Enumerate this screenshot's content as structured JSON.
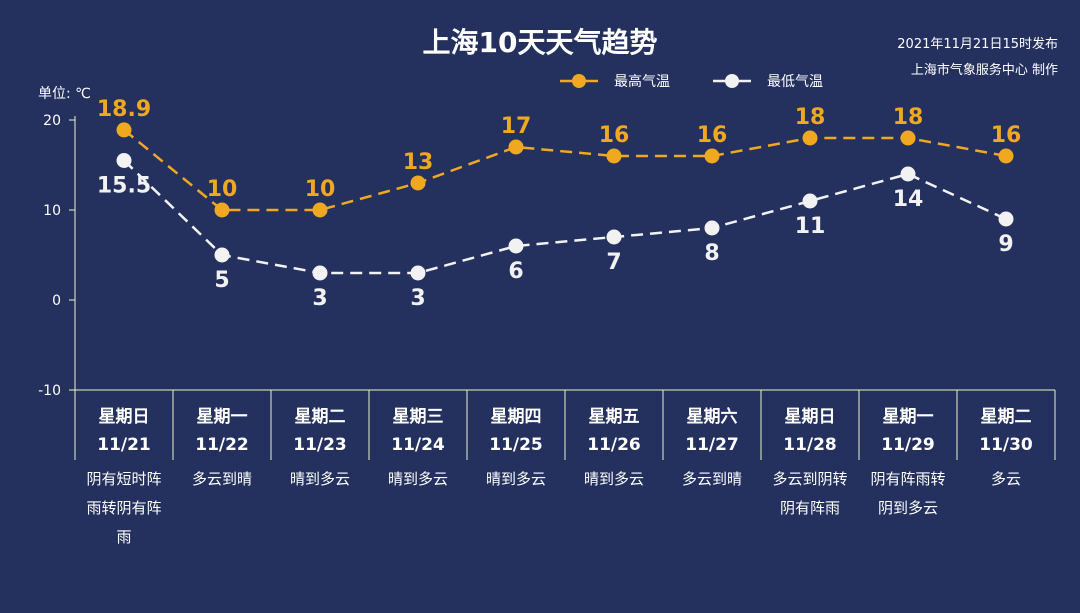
{
  "header": {
    "title": "上海10天天气趋势",
    "publish_time": "2021年11月21日15时发布",
    "publisher": "上海市气象服务中心 制作",
    "unit": "单位: ℃"
  },
  "colors": {
    "background": "#24305e",
    "high_series": "#f0a820",
    "low_series": "#f2f2f2",
    "axis": "#e8f4c8"
  },
  "chart_data": {
    "type": "line",
    "title": "上海10天天气趋势",
    "ylabel": "单位: ℃",
    "ylim": [
      -10,
      20
    ],
    "yticks": [
      -10,
      0,
      10,
      20
    ],
    "grid": false,
    "legend": "top-right",
    "categories": [
      "11/21",
      "11/22",
      "11/23",
      "11/24",
      "11/25",
      "11/26",
      "11/27",
      "11/28",
      "11/29",
      "11/30"
    ],
    "weekdays": [
      "星期日",
      "星期一",
      "星期二",
      "星期三",
      "星期四",
      "星期五",
      "星期六",
      "星期日",
      "星期一",
      "星期二"
    ],
    "weather": [
      [
        "阴有短时阵",
        "雨转阴有阵",
        "雨"
      ],
      [
        "多云到晴"
      ],
      [
        "晴到多云"
      ],
      [
        "晴到多云"
      ],
      [
        "晴到多云"
      ],
      [
        "晴到多云"
      ],
      [
        "多云到晴"
      ],
      [
        "多云到阴转",
        "阴有阵雨"
      ],
      [
        "阴有阵雨转",
        "阴到多云"
      ],
      [
        "多云"
      ]
    ],
    "series": [
      {
        "name": "最高气温",
        "values": [
          18.9,
          10,
          10,
          13,
          17,
          16,
          16,
          18,
          18,
          16
        ],
        "labels": [
          "18.9",
          "10",
          "10",
          "13",
          "17",
          "16",
          "16",
          "18",
          "18",
          "16"
        ]
      },
      {
        "name": "最低气温",
        "values": [
          15.5,
          5,
          3,
          3,
          6,
          7,
          8,
          11,
          14,
          9
        ],
        "labels": [
          "15.5",
          "5",
          "3",
          "3",
          "6",
          "7",
          "8",
          "11",
          "14",
          "9"
        ]
      }
    ]
  }
}
